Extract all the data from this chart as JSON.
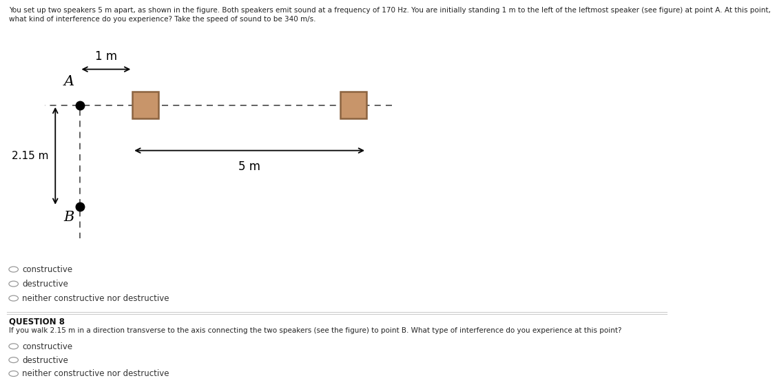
{
  "title_text": "You set up two speakers 5 m apart, as shown in the figure. Both speakers emit sound at a frequency of 170 Hz. You are initially standing 1 m to the left of the leftmost speaker (see figure) at point A. At this point, what kind of interference do you experience? Take the speed of sound to be 340 m/s.",
  "question8_header": "QUESTION 8",
  "question8_text": "If you walk 2.15 m in a direction transverse to the axis connecting the two speakers (see the figure) to point B. What type of interference do you experience at this point?",
  "choices": [
    "constructive",
    "destructive",
    "neither constructive nor destructive"
  ],
  "point_A_label": "A",
  "point_B_label": "B",
  "label_1m": "1 m",
  "label_5m": "5 m",
  "label_215m": "2.15 m",
  "speaker_color": "#c8956a",
  "speaker_edge": "#8B6340",
  "dashed_line_color": "#555555",
  "arrow_color": "#000000",
  "point_color": "#000000",
  "background_color": "#ffffff",
  "separator_color": "#cccccc",
  "title_fontsize": 7.5,
  "choice_fontsize": 8.5,
  "q8header_fontsize": 8.5,
  "q8text_fontsize": 7.5
}
